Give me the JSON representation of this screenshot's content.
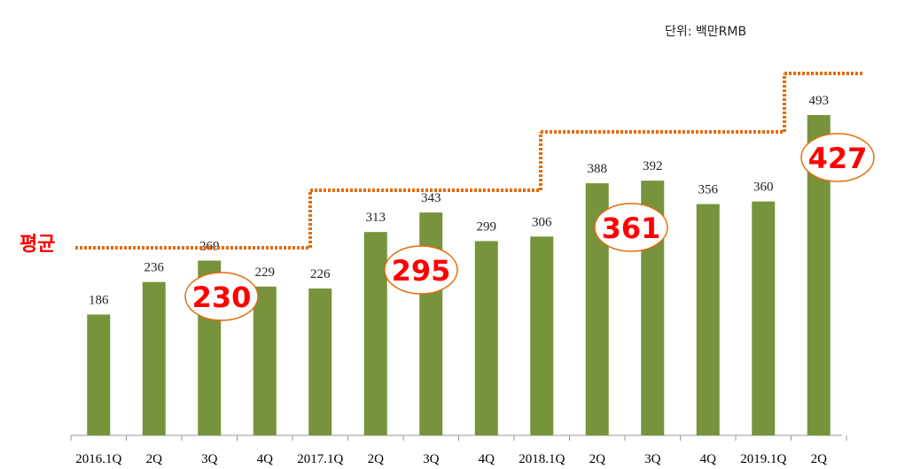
{
  "chart_data": {
    "type": "bar",
    "unit_label": "단위: 백만RMB",
    "average_label": "평균",
    "categories": [
      "2016.1Q",
      "2Q",
      "3Q",
      "4Q",
      "2017.1Q",
      "2Q",
      "3Q",
      "4Q",
      "2018.1Q",
      "2Q",
      "3Q",
      "4Q",
      "2019.1Q",
      "2Q"
    ],
    "values": [
      186,
      236,
      269,
      229,
      226,
      313,
      343,
      299,
      306,
      388,
      392,
      356,
      360,
      493
    ],
    "color": "#77933c",
    "averages": [
      230,
      295,
      361,
      427
    ],
    "average_color": "#e46c0a"
  }
}
